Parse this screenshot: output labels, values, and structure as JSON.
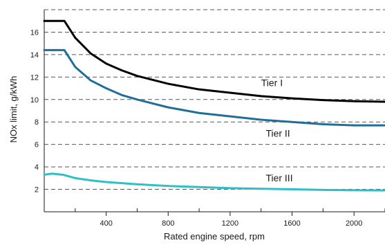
{
  "chart_data": {
    "type": "line",
    "title": "",
    "xlabel": "Rated engine speed, rpm",
    "ylabel": "NOx limit, g/kWh",
    "xlim": [
      0,
      2200
    ],
    "ylim": [
      0,
      18
    ],
    "x_ticks": [
      400,
      800,
      1200,
      1600,
      2000
    ],
    "x_tick_labels": [
      "400",
      "800",
      "1200",
      "1600",
      "2000"
    ],
    "x_minor_ticks": [
      200,
      600,
      1000,
      1400,
      1800,
      2200
    ],
    "y_ticks": [
      2,
      4,
      6,
      8,
      10,
      12,
      14,
      16
    ],
    "y_tick_labels": [
      "2",
      "4",
      "6",
      "8",
      "10",
      "12",
      "14",
      "16"
    ],
    "grid": "horizontal-dashed",
    "legend": "none",
    "series": [
      {
        "name": "Tier I",
        "color": "#000000",
        "x": [
          0,
          40,
          130,
          200,
          300,
          400,
          500,
          600,
          800,
          1000,
          1200,
          1400,
          1600,
          1800,
          2000,
          2200
        ],
        "y": [
          17.0,
          17.0,
          17.0,
          15.5,
          14.1,
          13.2,
          12.6,
          12.1,
          11.4,
          10.9,
          10.6,
          10.3,
          10.1,
          9.95,
          9.85,
          9.8
        ]
      },
      {
        "name": "Tier II",
        "color": "#1f6e9a",
        "x": [
          0,
          40,
          130,
          200,
          300,
          400,
          500,
          600,
          800,
          1000,
          1200,
          1400,
          1600,
          1800,
          2000,
          2200
        ],
        "y": [
          14.4,
          14.4,
          14.4,
          12.9,
          11.7,
          11.0,
          10.4,
          10.0,
          9.3,
          8.8,
          8.5,
          8.2,
          8.0,
          7.8,
          7.7,
          7.7
        ]
      },
      {
        "name": "Tier III",
        "color": "#2fbfc7",
        "x": [
          0,
          50,
          120,
          200,
          300,
          400,
          600,
          800,
          1000,
          1200,
          1400,
          1600,
          1800,
          2000,
          2200
        ],
        "y": [
          3.3,
          3.4,
          3.3,
          3.0,
          2.8,
          2.65,
          2.45,
          2.3,
          2.2,
          2.1,
          2.05,
          2.0,
          1.95,
          1.92,
          1.9
        ]
      }
    ],
    "annotations": [
      {
        "series_index": 0,
        "text": "Tier I",
        "x": 1400,
        "y": 11.2
      },
      {
        "series_index": 1,
        "text": "Tier II",
        "x": 1430,
        "y": 6.7
      },
      {
        "series_index": 2,
        "text": "Tier III",
        "x": 1430,
        "y": 2.7
      }
    ]
  }
}
